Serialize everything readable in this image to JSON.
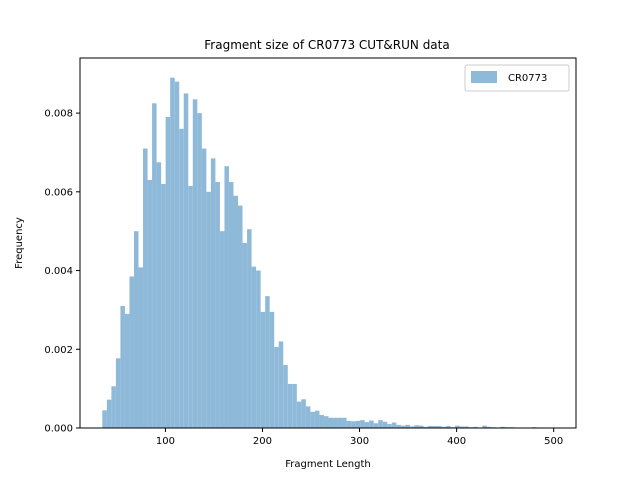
{
  "chart_data": {
    "type": "bar",
    "title": "Fragment size of CR0773 CUT&RUN data",
    "xlabel": "Fragment Length",
    "ylabel": "Frequency",
    "xlim": [
      12,
      523
    ],
    "ylim": [
      0,
      0.0094
    ],
    "xticks": [
      100,
      200,
      300,
      400,
      500
    ],
    "yticks": [
      0.0,
      0.002,
      0.004,
      0.006,
      0.008
    ],
    "ytick_labels": [
      "0.000",
      "0.002",
      "0.004",
      "0.006",
      "0.008"
    ],
    "legend_position": "top-right",
    "bar_color": "#8fb9d8",
    "series": [
      {
        "name": "CR0773",
        "bin_width": 4.66,
        "bins": [
          [
            35,
            0.00045
          ],
          [
            39.66,
            0.00072
          ],
          [
            44.32,
            0.00106
          ],
          [
            48.98,
            0.00177
          ],
          [
            53.64,
            0.0031
          ],
          [
            58.3,
            0.0029
          ],
          [
            62.96,
            0.00385
          ],
          [
            67.62,
            0.005
          ],
          [
            72.28,
            0.00408
          ],
          [
            76.94,
            0.0071
          ],
          [
            81.6,
            0.0063
          ],
          [
            86.26,
            0.00825
          ],
          [
            90.92,
            0.00675
          ],
          [
            95.58,
            0.0062
          ],
          [
            100.24,
            0.0079
          ],
          [
            104.9,
            0.0089
          ],
          [
            109.56,
            0.0088
          ],
          [
            114.22,
            0.0076
          ],
          [
            118.88,
            0.0085
          ],
          [
            123.54,
            0.00615
          ],
          [
            128.2,
            0.00835
          ],
          [
            132.86,
            0.008
          ],
          [
            137.52,
            0.0071
          ],
          [
            142.18,
            0.006
          ],
          [
            146.84,
            0.00685
          ],
          [
            151.5,
            0.00625
          ],
          [
            156.16,
            0.005
          ],
          [
            160.82,
            0.00665
          ],
          [
            165.48,
            0.00625
          ],
          [
            170.14,
            0.0059
          ],
          [
            174.8,
            0.00565
          ],
          [
            179.46,
            0.0047
          ],
          [
            184.12,
            0.00505
          ],
          [
            188.78,
            0.0041
          ],
          [
            193.44,
            0.004
          ],
          [
            198.1,
            0.00295
          ],
          [
            202.76,
            0.00335
          ],
          [
            207.42,
            0.00295
          ],
          [
            212.08,
            0.00206
          ],
          [
            216.74,
            0.0022
          ],
          [
            221.4,
            0.0016
          ],
          [
            226.06,
            0.00112
          ],
          [
            230.72,
            0.00112
          ],
          [
            235.38,
            0.00067
          ],
          [
            240.04,
            0.00073
          ],
          [
            244.7,
            0.00055
          ],
          [
            249.36,
            0.00041
          ],
          [
            254.02,
            0.00044
          ],
          [
            258.68,
            0.00033
          ],
          [
            263.34,
            0.0003
          ],
          [
            268,
            0.00026
          ],
          [
            272.66,
            0.00026
          ],
          [
            277.32,
            0.00026
          ],
          [
            281.98,
            0.00026
          ],
          [
            286.64,
            0.00018
          ],
          [
            291.3,
            0.00017
          ],
          [
            295.96,
            0.00018
          ],
          [
            300.62,
            0.0002
          ],
          [
            305.28,
            0.00015
          ],
          [
            309.94,
            0.00019
          ],
          [
            314.6,
            0.00012
          ],
          [
            319.26,
            0.0002
          ],
          [
            323.92,
            0.00016
          ],
          [
            328.58,
            0.0001
          ],
          [
            333.24,
            0.00014
          ],
          [
            337.9,
            8e-05
          ],
          [
            342.56,
            6e-05
          ],
          [
            347.22,
            8e-05
          ],
          [
            351.88,
            4e-05
          ],
          [
            356.54,
            7e-05
          ],
          [
            361.2,
            6e-05
          ],
          [
            365.86,
            3e-05
          ],
          [
            370.52,
            5e-05
          ],
          [
            375.18,
            5e-05
          ],
          [
            379.84,
            5e-05
          ],
          [
            384.5,
            3e-05
          ],
          [
            389.16,
            5e-05
          ],
          [
            393.82,
            2e-05
          ],
          [
            398.48,
            6e-05
          ],
          [
            403.14,
            4e-05
          ],
          [
            407.8,
            4e-05
          ],
          [
            412.46,
            2e-05
          ],
          [
            417.12,
            3e-05
          ],
          [
            421.78,
            1e-05
          ],
          [
            426.44,
            6e-05
          ],
          [
            431.1,
            3e-05
          ],
          [
            435.76,
            2e-05
          ],
          [
            440.42,
            1e-05
          ],
          [
            445.08,
            3e-05
          ],
          [
            449.74,
            2e-05
          ],
          [
            454.4,
            2e-05
          ],
          [
            459.06,
            1e-05
          ],
          [
            463.72,
            1e-05
          ],
          [
            468.38,
            1e-05
          ],
          [
            473.04,
            1e-05
          ],
          [
            477.7,
            2e-05
          ],
          [
            482.36,
            1e-05
          ],
          [
            487.02,
            1e-05
          ],
          [
            491.68,
            1e-05
          ],
          [
            496.34,
            1e-05
          ]
        ]
      }
    ]
  }
}
